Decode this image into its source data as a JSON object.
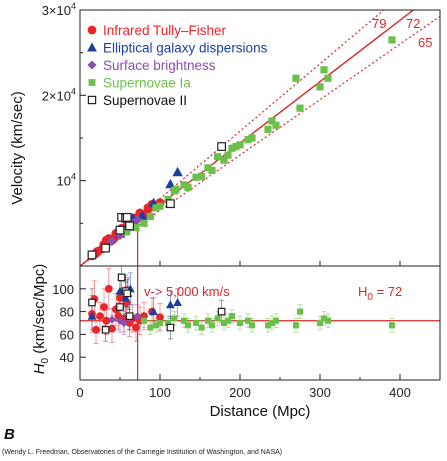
{
  "panel_letter": "B",
  "credit": "(Wendy L. Freedman, Observatories of the Carnegie Institution of Washington, and NASA)",
  "colors": {
    "tully": "#e8252b",
    "elliptical": "#1b3fa0",
    "surface": "#8a4fb0",
    "snIa": "#6cc04a",
    "snII": "#222222",
    "fit": "#d72a2a"
  },
  "chart_data": [
    {
      "type": "scatter",
      "panel": "top",
      "xlim": [
        0,
        450
      ],
      "ylim": [
        0,
        30000
      ],
      "ylabel": "Velocity (km/sec)",
      "ytick_labels": [
        {
          "value": 10000,
          "base": "10",
          "exp": "4"
        },
        {
          "value": 20000,
          "base": "2×10",
          "exp": "4"
        },
        {
          "value": 30000,
          "base": "3×10",
          "exp": "4"
        }
      ],
      "fit_lines": [
        {
          "label": "79",
          "slope": 79,
          "style": "dotted"
        },
        {
          "label": "72",
          "slope": 72,
          "style": "solid"
        },
        {
          "label": "65",
          "slope": 65,
          "style": "dotted"
        }
      ],
      "cutoff_x": 72,
      "series": [
        {
          "name": "Infrared Tully–Fisher",
          "marker": "circle",
          "color_key": "tully",
          "x": [
            15,
            18,
            20,
            22,
            28,
            30,
            33,
            36,
            40,
            42,
            45,
            48,
            50,
            52,
            55,
            58,
            60,
            62,
            66,
            68,
            70,
            75,
            80,
            85,
            90,
            95,
            100
          ],
          "y": [
            1200,
            1400,
            1500,
            1700,
            2000,
            2500,
            3000,
            3200,
            3000,
            3200,
            3800,
            4000,
            3800,
            4400,
            4200,
            4600,
            5000,
            5500,
            5000,
            5600,
            5600,
            6200,
            6000,
            6800,
            7200,
            7000,
            7400
          ]
        },
        {
          "name": "Elliptical galaxy dispersions",
          "marker": "triangle",
          "color_key": "elliptical",
          "x": [
            50,
            57,
            60,
            63,
            66,
            78,
            92,
            113,
            122
          ],
          "y": [
            3800,
            4300,
            4800,
            5200,
            5600,
            5900,
            7400,
            9600,
            11000
          ]
        },
        {
          "name": "Surface brightness",
          "marker": "diamond",
          "color_key": "surface",
          "x": [
            40,
            50,
            55,
            62,
            65,
            72
          ],
          "y": [
            2900,
            3600,
            4000,
            4500,
            5000,
            5400
          ]
        },
        {
          "name": "Supernovae Ia",
          "marker": "square",
          "color_key": "snIa",
          "x": [
            58,
            70,
            80,
            88,
            95,
            100,
            110,
            118,
            120,
            130,
            135,
            145,
            152,
            160,
            165,
            172,
            180,
            185,
            190,
            195,
            200,
            210,
            215,
            235,
            240,
            245,
            270,
            275,
            300,
            305,
            310,
            390
          ],
          "y": [
            4000,
            4500,
            5000,
            5800,
            6800,
            7000,
            7800,
            8800,
            9000,
            9500,
            9200,
            10400,
            10500,
            11500,
            11200,
            12800,
            12400,
            13000,
            13800,
            14000,
            14200,
            14800,
            15000,
            16000,
            17000,
            16500,
            22000,
            18500,
            21000,
            23000,
            22000,
            26500
          ]
        },
        {
          "name": "Supernovae II",
          "marker": "open-square",
          "color_key": "snII",
          "x": [
            15,
            32,
            50,
            52,
            57,
            59,
            62,
            113,
            177
          ],
          "y": [
            1300,
            2100,
            4200,
            5700,
            5600,
            5700,
            4700,
            7300,
            14000
          ]
        }
      ]
    },
    {
      "type": "scatter",
      "panel": "bottom",
      "xlim": [
        0,
        450
      ],
      "ylim": [
        20,
        120
      ],
      "xlabel": "Distance (Mpc)",
      "ylabel_main": "H",
      "ylabel_sub": "0",
      "ylabel_rest": " (km/sec/Mpc)",
      "xticks": [
        0,
        100,
        200,
        300,
        400
      ],
      "yticks": [
        40,
        60,
        80,
        100
      ],
      "hline": 72,
      "cutoff_x": 72,
      "h0_label": {
        "main": "H",
        "sub": "0",
        "rest": " = 72"
      },
      "annotation": "v-> 5,000 km/s",
      "series": [
        {
          "color_key": "tully",
          "marker": "circle",
          "x": [
            15,
            18,
            20,
            25,
            30,
            33,
            36,
            40,
            45,
            48,
            50,
            55,
            58,
            62,
            66,
            70,
            75,
            80,
            90,
            100
          ],
          "y": [
            78,
            91,
            64,
            76,
            84,
            72,
            100,
            65,
            82,
            76,
            92,
            74,
            88,
            70,
            74,
            66,
            72,
            76,
            80,
            75
          ],
          "err": [
            16,
            16,
            12,
            12,
            16,
            12,
            18,
            12,
            14,
            12,
            16,
            12,
            14,
            12,
            12,
            12,
            12,
            12,
            12,
            12
          ]
        },
        {
          "color_key": "elliptical",
          "marker": "triangle",
          "x": [
            15,
            50,
            57,
            60,
            63,
            92,
            113,
            122
          ],
          "y": [
            76,
            98,
            92,
            96,
            100,
            80,
            86,
            88
          ],
          "err": [
            12,
            14,
            14,
            14,
            14,
            12,
            12,
            12
          ]
        },
        {
          "color_key": "surface",
          "marker": "diamond",
          "x": [
            40,
            50,
            55,
            62,
            72
          ],
          "y": [
            73,
            72,
            70,
            74,
            76
          ],
          "err": [
            10,
            10,
            10,
            10,
            10
          ]
        },
        {
          "color_key": "snIa",
          "marker": "square",
          "x": [
            80,
            88,
            95,
            100,
            110,
            118,
            130,
            135,
            145,
            152,
            160,
            165,
            172,
            180,
            185,
            190,
            200,
            210,
            215,
            235,
            240,
            245,
            270,
            275,
            300,
            305,
            310,
            390
          ],
          "y": [
            72,
            66,
            68,
            70,
            70,
            74,
            72,
            68,
            70,
            66,
            72,
            68,
            74,
            70,
            72,
            76,
            70,
            72,
            68,
            68,
            70,
            72,
            68,
            80,
            70,
            74,
            72,
            68
          ],
          "err": [
            6,
            6,
            6,
            6,
            6,
            6,
            6,
            6,
            6,
            6,
            6,
            6,
            6,
            6,
            6,
            6,
            6,
            6,
            6,
            6,
            6,
            6,
            6,
            6,
            6,
            6,
            6,
            6
          ]
        },
        {
          "color_key": "snII",
          "marker": "open-square",
          "x": [
            15,
            32,
            50,
            52,
            57,
            59,
            62,
            113,
            177
          ],
          "y": [
            88,
            64,
            84,
            110,
            98,
            96,
            76,
            66,
            80
          ],
          "err": [
            12,
            10,
            12,
            14,
            14,
            12,
            12,
            10,
            10
          ]
        }
      ]
    }
  ]
}
